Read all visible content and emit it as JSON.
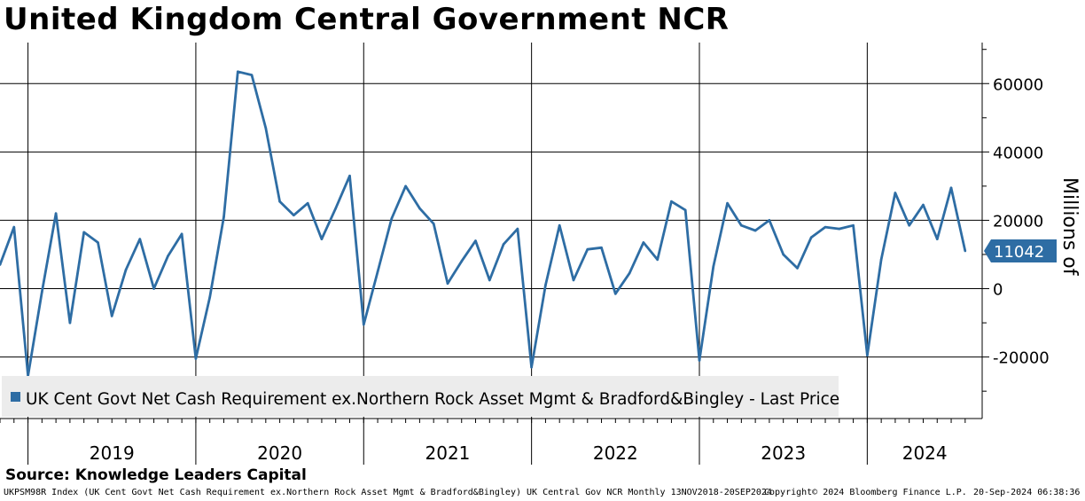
{
  "title": "United Kingdom Central Government NCR",
  "source": "Source: Knowledge Leaders Capital",
  "footer": {
    "left": "UKPSM98R Index (UK Cent Govt Net Cash Requirement ex.Northern Rock Asset Mgmt & Bradford&Bingley) UK Central Gov NCR  Monthly 13NOV2018-20SEP2024",
    "copyright": "Copyright© 2024 Bloomberg Finance L.P.",
    "timestamp": "20-Sep-2024 06:38:36"
  },
  "colors": {
    "series": "#2e6da4",
    "label_box": "#2e6da4",
    "legend_bg": "#ececec",
    "grid": "#000000"
  },
  "chart_data": {
    "type": "line",
    "ylabel": "Millions of",
    "ylim": [
      -38000,
      72000
    ],
    "yticks": [
      -20000,
      0,
      20000,
      40000,
      60000
    ],
    "ytick_labels": [
      "-20000",
      "0",
      "20000",
      "40000",
      "60000"
    ],
    "year_labels": [
      "2019",
      "2020",
      "2021",
      "2022",
      "2023",
      "2024"
    ],
    "x_start": "2018-11",
    "legend": "UK Cent Govt Net Cash Requirement ex.Northern Rock Asset Mgmt & Bradford&Bingley - Last Price",
    "last_value": 11042,
    "last_value_label": "11042",
    "series": [
      {
        "name": "UK Cent Govt Net Cash Requirement ex.Northern Rock Asset Mgmt & Bradford&Bingley - Last Price",
        "dates": [
          "2018-11",
          "2018-12",
          "2019-01",
          "2019-02",
          "2019-03",
          "2019-04",
          "2019-05",
          "2019-06",
          "2019-07",
          "2019-08",
          "2019-09",
          "2019-10",
          "2019-11",
          "2019-12",
          "2020-01",
          "2020-02",
          "2020-03",
          "2020-04",
          "2020-05",
          "2020-06",
          "2020-07",
          "2020-08",
          "2020-09",
          "2020-10",
          "2020-11",
          "2020-12",
          "2021-01",
          "2021-02",
          "2021-03",
          "2021-04",
          "2021-05",
          "2021-06",
          "2021-07",
          "2021-08",
          "2021-09",
          "2021-10",
          "2021-11",
          "2021-12",
          "2022-01",
          "2022-02",
          "2022-03",
          "2022-04",
          "2022-05",
          "2022-06",
          "2022-07",
          "2022-08",
          "2022-09",
          "2022-10",
          "2022-11",
          "2022-12",
          "2023-01",
          "2023-02",
          "2023-03",
          "2023-04",
          "2023-05",
          "2023-06",
          "2023-07",
          "2023-08",
          "2023-09",
          "2023-10",
          "2023-11",
          "2023-12",
          "2024-01",
          "2024-02",
          "2024-03",
          "2024-04",
          "2024-05",
          "2024-06",
          "2024-07",
          "2024-08"
        ],
        "values": [
          7000,
          18000,
          -25500,
          -1000,
          22000,
          -10000,
          16500,
          13500,
          -8000,
          5500,
          14500,
          0,
          9500,
          16000,
          -20500,
          -2500,
          21000,
          63500,
          62500,
          47000,
          25500,
          21500,
          25000,
          14500,
          23500,
          33000,
          -10500,
          5000,
          20500,
          30000,
          23500,
          19000,
          1500,
          8000,
          14000,
          2500,
          13000,
          17500,
          -23000,
          1000,
          18500,
          2500,
          11500,
          12000,
          -1500,
          4500,
          13500,
          8500,
          25500,
          23000,
          -21000,
          6500,
          25000,
          18500,
          17000,
          20000,
          10000,
          6000,
          15000,
          18000,
          17500,
          18500,
          -19500,
          8500,
          28000,
          18500,
          24500,
          14500,
          29500,
          11042
        ]
      }
    ]
  }
}
